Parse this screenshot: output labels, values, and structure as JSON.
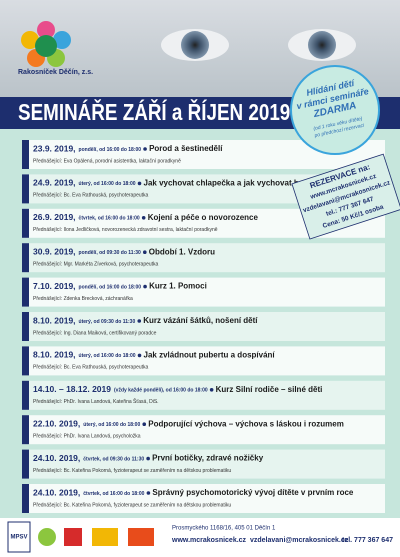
{
  "header": {
    "org": "Rakosníček Děčín, z.s.",
    "title": "SEMINÁŘE ZÁŘÍ a ŘÍJEN 2019"
  },
  "badge": {
    "lines": [
      "Hlídání dětí",
      "v rámci semináře",
      "ZDARMA"
    ],
    "note": [
      "(od 1 roku věku dítěte)",
      "po předchozí rezervaci"
    ]
  },
  "reservation": {
    "lines": [
      "REZERVACE na:",
      "www.mcrakosnicek.cz",
      "vzdelavani@mcrakosnicek.cz",
      "tel.: 777 367 647",
      "Cena: 50 Kč/1 osoba"
    ]
  },
  "events": [
    {
      "date": "23.9. 2019,",
      "time": "pondělí, od 16:00 do 18:00",
      "title": "Porod a šestinedělí",
      "lecturer": "Přednášející: Eva Opálená, porodní asistentka, laktační poradkyně"
    },
    {
      "date": "24.9. 2019,",
      "time": "úterý, od 16:00 do 18:00",
      "title": "Jak vychovat chlapečka a jak vychovat holčičku",
      "lecturer": "Přednášející: Bc. Eva Rathouská, psychoterapeutka"
    },
    {
      "date": "26.9. 2019,",
      "time": "čtvrtek, od 16:00 do 18:00",
      "title": "Kojení a péče o novorozence",
      "lecturer": "Přednášející: Ilona Jedličková, novorozenecká zdravotní sestra, laktační poradkyně"
    },
    {
      "date": "30.9. 2019,",
      "time": "pondělí, od 09:30 do 11:30",
      "title": "Období 1. Vzdoru",
      "lecturer": "Přednášející: Mgr. Markéta Zíverková, psychoterapeutka"
    },
    {
      "date": "7.10. 2019,",
      "time": "pondělí, od 16:00 do 18:00",
      "title": "Kurz 1. Pomoci",
      "lecturer": "Přednášející: Zdenka Brecková, záchranářka"
    },
    {
      "date": "8.10. 2019,",
      "time": "úterý, od 09:30 do 11:30",
      "title": "Kurz vázání šátků, nošení dětí",
      "lecturer": "Přednášející: Ing. Diana Maiková, certifikovaný poradce"
    },
    {
      "date": "8.10. 2019,",
      "time": "úterý, od 16:00 do 18:00",
      "title": "Jak zvládnout pubertu a dospívání",
      "lecturer": "Přednášející: Bc. Eva Rathouská, psychoterapeutka"
    },
    {
      "date": "14.10. – 18.12. 2019",
      "time": "(vždy každé pondělí), od 16:00 do 18:00",
      "title": "Kurz Silní rodiče – silné děti",
      "lecturer": "Přednášející: PhDr. Ivana Landová, Kateřina Šťasá, DiS."
    },
    {
      "date": "22.10. 2019,",
      "time": "úterý, od 16:00 do 18:00",
      "title": "Podporující výchova – výchova s láskou i rozumem",
      "lecturer": "Přednášející: PhDr. Ivana Landová, psycholožka"
    },
    {
      "date": "24.10. 2019,",
      "time": "čtvrtek, od 09:30 do 11:30",
      "title": "První botičky, zdravé nožičky",
      "lecturer": "Přednášející: Bc. Kateřina Pokorná, fyzioterapeut se zaměřením na dětskou problematiku"
    },
    {
      "date": "24.10. 2019,",
      "time": "čtvrtek, od 16:00 do 18:00",
      "title": "Správný psychomotorický vývoj dítěte v prvním roce",
      "lecturer": "Přednášející: Bc. Kateřina Pokorná, fyzioterapeut se zaměřením na dětskou problematiku"
    }
  ],
  "footer": {
    "logo": "MPSV",
    "address": "Prosmyckého 1168/16, 405 01 Děčín 1",
    "web": "www.mcrakosnicek.cz",
    "email": "vzdelavani@mcrakosnicek.cz",
    "phone": "tel. 777 367 647"
  }
}
